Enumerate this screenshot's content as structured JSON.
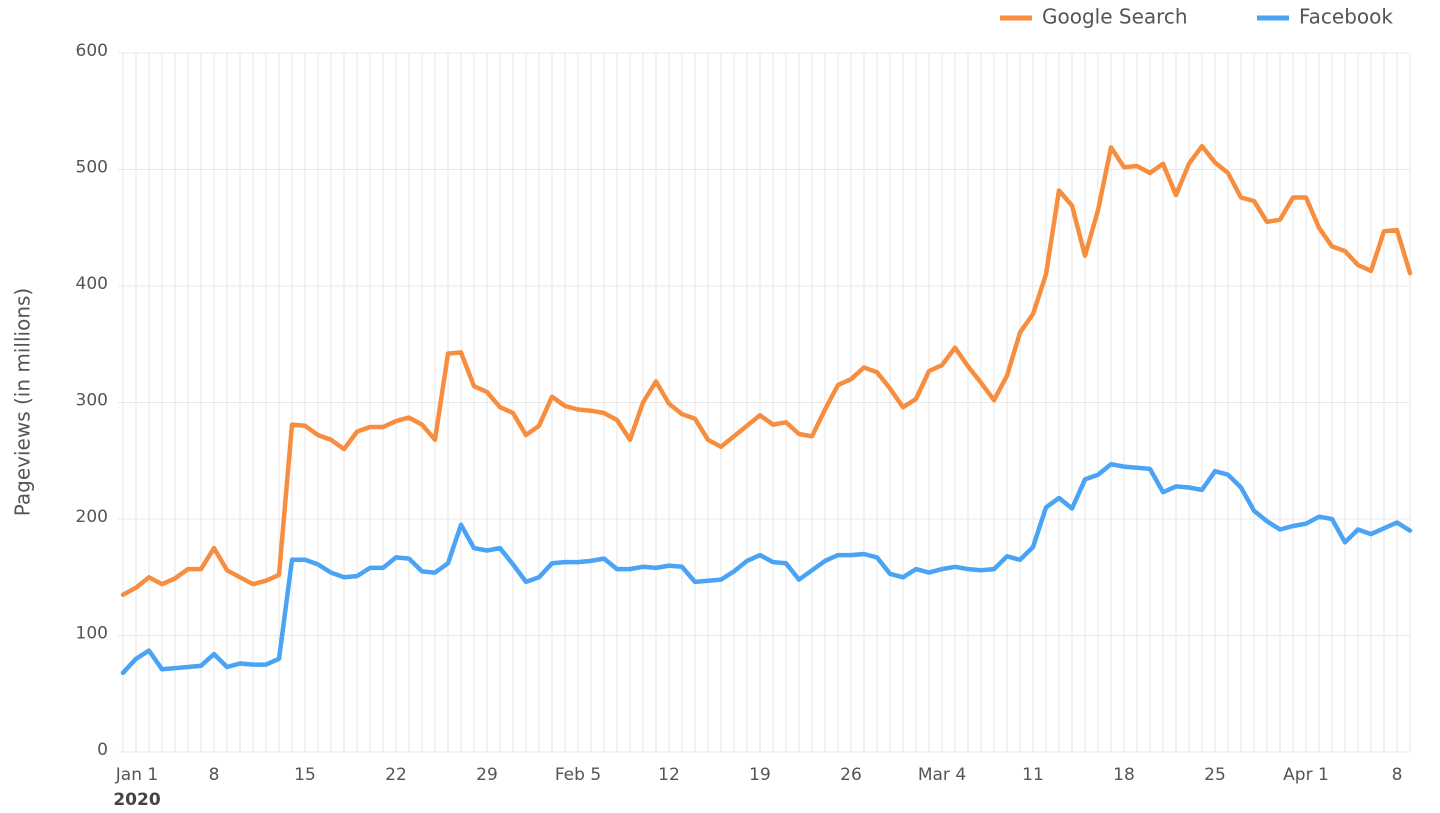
{
  "chart_data": {
    "type": "line",
    "y_label": "Pageviews (in millions)",
    "year_label": "2020",
    "categories": [
      "Jan 1",
      null,
      null,
      null,
      null,
      null,
      null,
      "8",
      null,
      null,
      null,
      null,
      null,
      null,
      "15",
      null,
      null,
      null,
      null,
      null,
      null,
      "22",
      null,
      null,
      null,
      null,
      null,
      null,
      "29",
      null,
      null,
      null,
      null,
      null,
      null,
      "Feb 5",
      null,
      null,
      null,
      null,
      null,
      null,
      "12",
      null,
      null,
      null,
      null,
      null,
      null,
      "19",
      null,
      null,
      null,
      null,
      null,
      null,
      "26",
      null,
      null,
      null,
      null,
      null,
      null,
      "Mar 4",
      null,
      null,
      null,
      null,
      null,
      null,
      "11",
      null,
      null,
      null,
      null,
      null,
      null,
      "18",
      null,
      null,
      null,
      null,
      null,
      null,
      "25",
      null,
      null,
      null,
      null,
      null,
      null,
      "Apr 1",
      null,
      null,
      null,
      null,
      null,
      null,
      "8",
      null
    ],
    "series": [
      {
        "name": "Google Search",
        "color": "#f78d3f",
        "values": [
          135,
          141,
          150,
          144,
          149,
          157,
          157,
          175,
          156,
          150,
          144,
          147,
          152,
          281,
          280,
          272,
          268,
          260,
          275,
          279,
          279,
          284,
          287,
          281,
          268,
          342,
          343,
          314,
          309,
          296,
          291,
          272,
          280,
          305,
          297,
          294,
          293,
          291,
          285,
          268,
          300,
          318,
          299,
          290,
          286,
          268,
          262,
          271,
          280,
          289,
          281,
          283,
          273,
          271,
          294,
          315,
          320,
          330,
          326,
          312,
          296,
          303,
          327,
          332,
          347,
          331,
          317,
          302,
          323,
          360,
          376,
          410,
          482,
          469,
          426,
          465,
          519,
          502,
          503,
          497,
          505,
          478,
          505,
          520,
          506,
          497,
          476,
          473,
          455,
          457,
          476,
          476,
          450,
          434,
          430,
          418,
          413,
          447,
          448,
          411
        ]
      },
      {
        "name": "Facebook",
        "color": "#4aa3f5",
        "values": [
          68,
          80,
          87,
          71,
          72,
          73,
          74,
          84,
          73,
          76,
          75,
          75,
          80,
          165,
          165,
          161,
          154,
          150,
          151,
          158,
          158,
          167,
          166,
          155,
          154,
          162,
          195,
          175,
          173,
          175,
          161,
          146,
          150,
          162,
          163,
          163,
          164,
          166,
          157,
          157,
          159,
          158,
          160,
          159,
          146,
          147,
          148,
          155,
          164,
          169,
          163,
          162,
          148,
          156,
          164,
          169,
          169,
          170,
          167,
          153,
          150,
          157,
          154,
          157,
          159,
          157,
          156,
          157,
          168,
          165,
          176,
          210,
          218,
          209,
          234,
          238,
          247,
          245,
          244,
          243,
          223,
          228,
          227,
          225,
          241,
          238,
          227,
          207,
          198,
          191,
          194,
          196,
          202,
          200,
          180,
          191,
          187,
          192,
          197,
          190
        ]
      }
    ],
    "ylim": [
      0,
      600
    ],
    "yticks": [
      0,
      100,
      200,
      300,
      400,
      500,
      600
    ],
    "grid": true,
    "legend": "top-right"
  }
}
